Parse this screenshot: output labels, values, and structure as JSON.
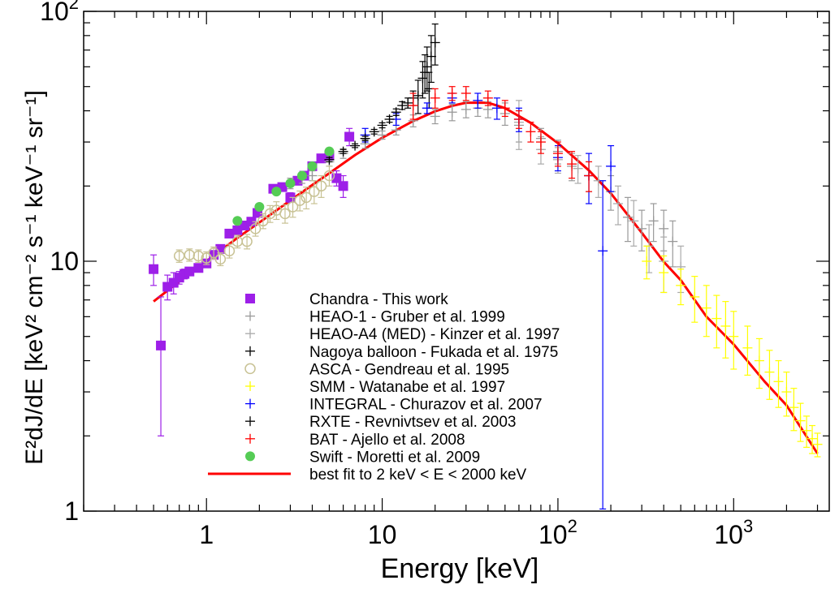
{
  "chart_data": {
    "type": "scatter",
    "xlabel": "Energy [keV]",
    "ylabel": "E²dJ/dE [keV² cm⁻² s⁻¹ keV⁻¹ sr⁻¹]",
    "xscale": "log",
    "yscale": "log",
    "xlim": [
      0.2,
      3500
    ],
    "ylim": [
      1,
      100
    ],
    "x_ticks": [
      {
        "value": 1,
        "base": "1",
        "exp": ""
      },
      {
        "value": 10,
        "base": "10",
        "exp": ""
      },
      {
        "value": 100,
        "base": "10",
        "exp": "2"
      },
      {
        "value": 1000,
        "base": "10",
        "exp": "3"
      }
    ],
    "y_ticks": [
      {
        "value": 1,
        "base": "1",
        "exp": ""
      },
      {
        "value": 10,
        "base": "10",
        "exp": ""
      },
      {
        "value": 100,
        "base": "10",
        "exp": "2"
      }
    ],
    "grid": false,
    "legend_position": "lower-left",
    "series": [
      {
        "name": "Chandra - This work",
        "marker": "square",
        "color": "#9d1fe8",
        "points": [
          [
            0.5,
            9.3,
            1.3
          ],
          [
            0.55,
            4.6,
            2.6
          ],
          [
            0.6,
            7.9,
            0.9
          ],
          [
            0.65,
            8.2,
            0.8
          ],
          [
            0.7,
            8.6,
            0.5
          ],
          [
            0.75,
            8.9,
            0.4
          ],
          [
            0.8,
            9.1,
            0.3
          ],
          [
            0.9,
            9.4,
            0.3
          ],
          [
            1.0,
            9.8,
            0.3
          ],
          [
            1.1,
            10.6,
            0.3
          ],
          [
            1.2,
            11.2,
            0.3
          ],
          [
            1.35,
            12.9,
            0.3
          ],
          [
            1.5,
            13.3,
            0.3
          ],
          [
            1.65,
            13.9,
            0.4
          ],
          [
            1.8,
            14.4,
            0.4
          ],
          [
            1.95,
            15.6,
            0.5
          ],
          [
            2.4,
            19.5,
            0.6
          ],
          [
            2.7,
            19.8,
            0.6
          ],
          [
            3.0,
            18.0,
            0.8
          ],
          [
            3.3,
            21.0,
            0.8
          ],
          [
            3.6,
            22.0,
            0.8
          ],
          [
            4.0,
            24.0,
            0.9
          ],
          [
            4.5,
            25.8,
            1.0
          ],
          [
            5.0,
            26.5,
            1.1
          ],
          [
            5.5,
            21.5,
            1.5
          ],
          [
            6.0,
            20.0,
            2.0
          ],
          [
            6.5,
            31.5,
            2.5
          ]
        ]
      },
      {
        "name": "HEAO-1 - Gruber et al. 1999",
        "marker": "plus",
        "color": "#999999",
        "points": [
          [
            3,
            20.5,
            1.0
          ],
          [
            3.5,
            21.5,
            1.0
          ],
          [
            4,
            22.0,
            1.0
          ],
          [
            5,
            25.0,
            1.0
          ],
          [
            6,
            27.0,
            1.2
          ],
          [
            8,
            29.5,
            1.2
          ],
          [
            10,
            32.0,
            1.2
          ],
          [
            12,
            33.5,
            1.5
          ],
          [
            15,
            36.5,
            2.0
          ],
          [
            20,
            38.0,
            2.5
          ],
          [
            25,
            39.5,
            3.0
          ],
          [
            30,
            40.5,
            3.0
          ],
          [
            35,
            41.0,
            3.0
          ],
          [
            40,
            40.5,
            3.0
          ],
          [
            50,
            39.0,
            4.0
          ],
          [
            60,
            35.0,
            5.0
          ],
          [
            80,
            31.0,
            3.0
          ],
          [
            100,
            27.5,
            3.0
          ],
          [
            120,
            24.0,
            3.0
          ],
          [
            150,
            22.0,
            3.0
          ],
          [
            200,
            19.0,
            3.0
          ],
          [
            250,
            15.0,
            3.0
          ],
          [
            300,
            13.5,
            2.5
          ],
          [
            350,
            14.5,
            2.5
          ],
          [
            400,
            13.5,
            2.5
          ],
          [
            450,
            12.0,
            2.5
          ]
        ]
      },
      {
        "name": "HEAO-A4 (MED) - Kinzer et al. 1997",
        "marker": "plus",
        "color": "#aaaaaa",
        "points": [
          [
            80,
            28.0,
            3.5
          ],
          [
            100,
            25.5,
            3.0
          ],
          [
            130,
            23.5,
            3.0
          ],
          [
            170,
            21.0,
            3.0
          ],
          [
            220,
            17.0,
            3.0
          ],
          [
            270,
            14.5,
            3.0
          ],
          [
            330,
            11.5,
            2.5
          ],
          [
            400,
            10.0,
            2.5
          ],
          [
            500,
            9.5,
            2.0
          ],
          [
            60,
            36.0,
            8.0
          ]
        ]
      },
      {
        "name": "Nagoya balloon - Fukada et al. 1975",
        "marker": "plus",
        "color": "#000000",
        "points": [
          [
            16,
            46.0,
            7.0
          ],
          [
            17,
            54.0,
            9.0
          ],
          [
            18,
            60.0,
            12.0
          ],
          [
            19,
            66.0,
            14.0
          ],
          [
            20,
            75.0,
            14.0
          ],
          [
            18.5,
            49.0,
            8.0
          ],
          [
            17.5,
            57.0,
            10.0
          ]
        ]
      },
      {
        "name": "ASCA - Gendreau et al. 1995",
        "marker": "circle-open",
        "color": "#c8c294",
        "points": [
          [
            0.7,
            10.5,
            0.6
          ],
          [
            0.8,
            10.6,
            0.6
          ],
          [
            0.9,
            10.5,
            0.6
          ],
          [
            1.0,
            10.3,
            0.6
          ],
          [
            1.1,
            10.8,
            0.6
          ],
          [
            1.2,
            10.2,
            0.6
          ],
          [
            1.35,
            11.0,
            0.7
          ],
          [
            1.5,
            12.0,
            0.7
          ],
          [
            1.7,
            12.0,
            0.8
          ],
          [
            1.9,
            13.5,
            0.9
          ],
          [
            2.1,
            14.5,
            1.0
          ],
          [
            2.3,
            15.5,
            1.2
          ],
          [
            2.5,
            16.0,
            1.3
          ],
          [
            2.8,
            15.5,
            1.3
          ],
          [
            3.1,
            16.5,
            1.5
          ],
          [
            3.4,
            17.5,
            1.6
          ],
          [
            3.7,
            18.0,
            1.8
          ],
          [
            4.1,
            19.0,
            2.0
          ],
          [
            4.5,
            20.0,
            2.0
          ],
          [
            5.0,
            22.0,
            2.0
          ]
        ]
      },
      {
        "name": "SMM - Watanabe et al. 1997",
        "marker": "plus",
        "color": "#ffff00",
        "points": [
          [
            320,
            10.0,
            1.5
          ],
          [
            400,
            9.0,
            1.5
          ],
          [
            500,
            8.0,
            1.3
          ],
          [
            600,
            7.2,
            1.5
          ],
          [
            700,
            6.5,
            1.5
          ],
          [
            800,
            5.9,
            1.4
          ],
          [
            900,
            5.5,
            1.4
          ],
          [
            1000,
            5.0,
            1.3
          ],
          [
            1200,
            4.5,
            1.0
          ],
          [
            1400,
            4.0,
            0.9
          ],
          [
            1600,
            3.6,
            0.8
          ],
          [
            1800,
            3.3,
            0.7
          ],
          [
            2000,
            3.0,
            0.6
          ],
          [
            2200,
            2.6,
            0.5
          ],
          [
            2400,
            2.3,
            0.4
          ],
          [
            2600,
            2.1,
            0.3
          ],
          [
            2800,
            1.95,
            0.25
          ],
          [
            3000,
            1.85,
            0.2
          ]
        ]
      },
      {
        "name": "INTEGRAL - Churazov et al. 2007",
        "marker": "plus",
        "color": "#0000ff",
        "points": [
          [
            8,
            32.0,
            2.0
          ],
          [
            12,
            37.0,
            2.0
          ],
          [
            18,
            41.0,
            2.0
          ],
          [
            25,
            45.0,
            2.0
          ],
          [
            35,
            44.0,
            3.0
          ],
          [
            45,
            41.0,
            4.0
          ],
          [
            60,
            37.0,
            4.0
          ],
          [
            100,
            26.0,
            3.0
          ],
          [
            150,
            22.0,
            5.0
          ],
          [
            180,
            11.0,
            10.0
          ],
          [
            200,
            24.0,
            5.0
          ]
        ]
      },
      {
        "name": "RXTE - Revnivtsev et al. 2003",
        "marker": "plus",
        "color": "#000000",
        "points": [
          [
            5,
            25.5,
            0.5
          ],
          [
            6,
            27.5,
            0.5
          ],
          [
            7,
            29.0,
            0.5
          ],
          [
            8,
            31.0,
            0.6
          ],
          [
            9,
            33.0,
            0.7
          ],
          [
            10,
            35.0,
            0.8
          ],
          [
            11,
            37.0,
            1.0
          ],
          [
            12,
            39.5,
            1.2
          ],
          [
            13,
            42.0,
            1.5
          ],
          [
            14,
            43.0,
            2.0
          ],
          [
            15,
            45.0,
            3.0
          ]
        ]
      },
      {
        "name": "BAT - Ajello et al. 2008",
        "marker": "plus",
        "color": "#ff0000",
        "points": [
          [
            15,
            42.0,
            5.0
          ],
          [
            20,
            45.0,
            4.0
          ],
          [
            25,
            47.0,
            3.0
          ],
          [
            30,
            47.0,
            3.0
          ],
          [
            40,
            45.0,
            3.0
          ],
          [
            50,
            41.0,
            3.0
          ],
          [
            60,
            37.0,
            3.0
          ],
          [
            70,
            33.0,
            3.0
          ],
          [
            80,
            30.0,
            3.0
          ],
          [
            100,
            27.0,
            3.0
          ],
          [
            120,
            24.5,
            3.0
          ],
          [
            150,
            22.0,
            3.0
          ]
        ]
      },
      {
        "name": "Swift - Moretti et al. 2009",
        "marker": "circle-filled",
        "color": "#55cc55",
        "points": [
          [
            1.5,
            14.5,
            0.4
          ],
          [
            2.0,
            16.5,
            0.4
          ],
          [
            2.5,
            19.0,
            0.5
          ],
          [
            3.0,
            20.5,
            0.5
          ],
          [
            3.5,
            22.0,
            0.6
          ],
          [
            4.0,
            24.0,
            0.6
          ],
          [
            5.0,
            27.5,
            0.7
          ]
        ]
      }
    ],
    "fit": {
      "name": "best fit to 2 keV < E < 2000 keV",
      "color": "#ff0000",
      "x": [
        0.5,
        0.7,
        1,
        1.5,
        2,
        3,
        4,
        5,
        7,
        10,
        15,
        20,
        25,
        30,
        40,
        50,
        70,
        100,
        150,
        200,
        300,
        400,
        500,
        700,
        1000,
        1500,
        2000,
        3000
      ],
      "y": [
        6.9,
        8.3,
        10.0,
        12.4,
        14.3,
        17.5,
        20.2,
        22.5,
        26.6,
        31.2,
        36.4,
        39.8,
        41.9,
        43.1,
        43.1,
        41.0,
        35.8,
        29.7,
        23.1,
        18.7,
        13.0,
        9.95,
        8.4,
        6.0,
        4.65,
        3.3,
        2.65,
        1.7
      ]
    }
  }
}
